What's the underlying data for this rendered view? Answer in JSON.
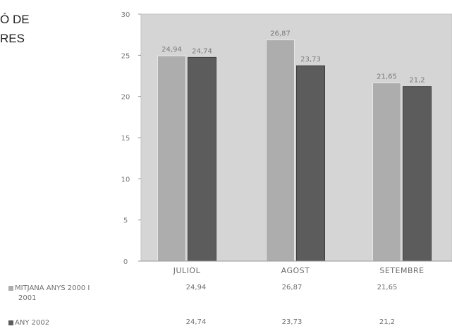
{
  "title": {
    "line1": "Ó DE",
    "line2": "RES"
  },
  "chart_data": {
    "type": "bar",
    "categories": [
      "JULIOL",
      "AGOST",
      "SETEMBRE"
    ],
    "series": [
      {
        "name": "MITJANA ANYS 2000 I 2001",
        "values": [
          24.94,
          26.87,
          21.65
        ],
        "labels": [
          "24,94",
          "26,87",
          "21,65"
        ]
      },
      {
        "name": "ANY 2002",
        "values": [
          24.74,
          23.73,
          21.2
        ],
        "labels": [
          "24,74",
          "23,73",
          "21,2"
        ]
      }
    ],
    "ylim": [
      0,
      30
    ],
    "yticks": [
      0,
      5,
      10,
      15,
      20,
      25,
      30
    ],
    "grid": false,
    "legend": "bottom data table",
    "colors": {
      "series1": "#adadad",
      "series2": "#5c5c5c",
      "plot_bg": "#d5d5d5"
    }
  },
  "legend_table": {
    "rows": [
      {
        "line1": "MITJANA ANYS 2000 I",
        "line2": "2001",
        "values": [
          "24,94",
          "26,87",
          "21,65"
        ]
      },
      {
        "line1": "ANY 2002",
        "line2": "",
        "values": [
          "24,74",
          "23,73",
          "21,2"
        ]
      }
    ]
  }
}
